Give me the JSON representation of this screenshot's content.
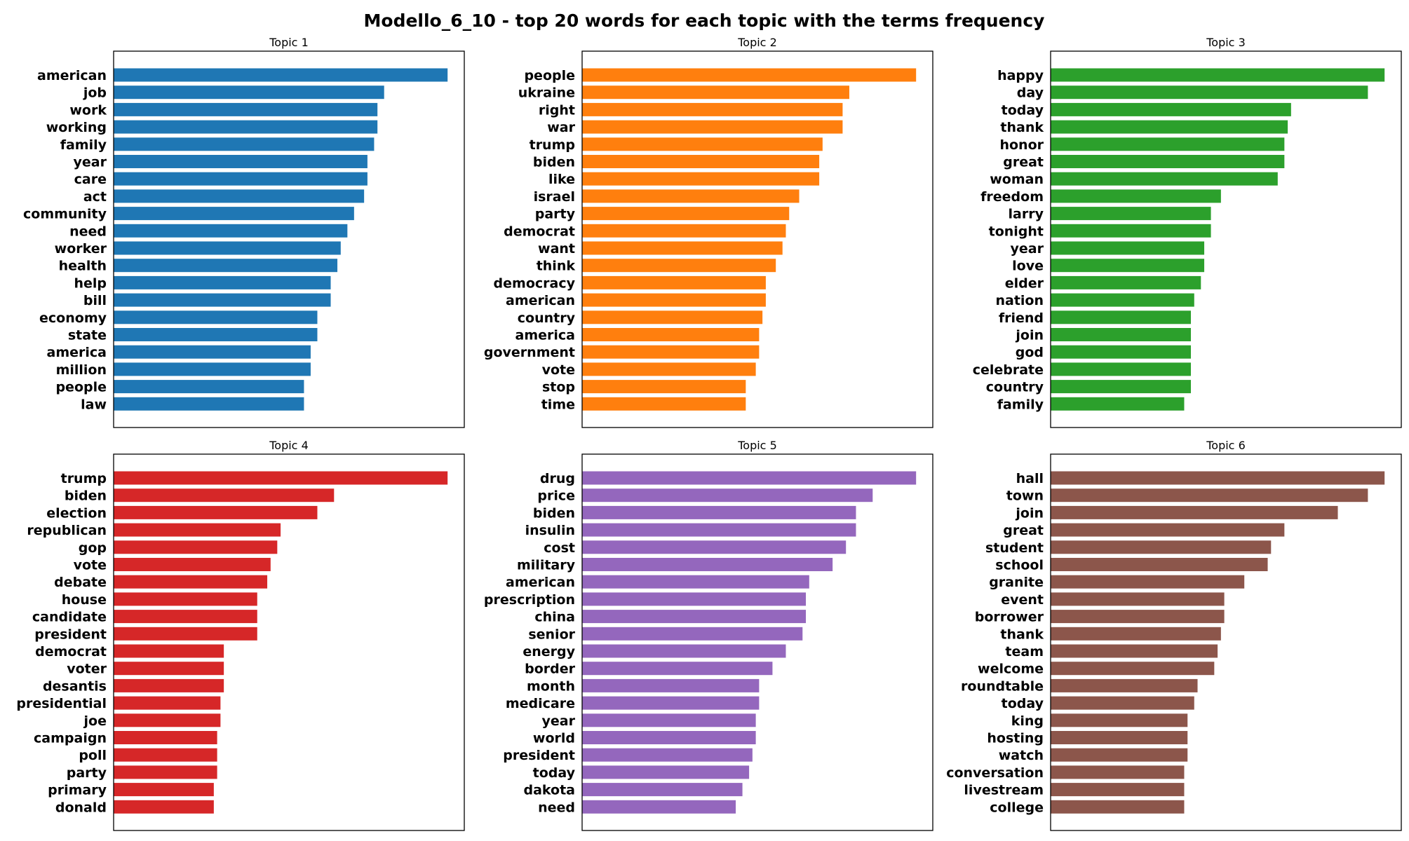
{
  "title": "Modello_6_10 - top 20 words for each topic with the terms frequency",
  "chart_data": [
    {
      "type": "bar",
      "orientation": "horizontal",
      "title": "Topic 1",
      "color": "#1f77b4",
      "xlim": [
        0,
        0.0105
      ],
      "categories": [
        "american",
        "job",
        "work",
        "working",
        "family",
        "year",
        "care",
        "act",
        "community",
        "need",
        "worker",
        "health",
        "help",
        "bill",
        "economy",
        "state",
        "america",
        "million",
        "people",
        "law"
      ],
      "values": [
        0.01,
        0.0081,
        0.0079,
        0.0079,
        0.0078,
        0.0076,
        0.0076,
        0.0075,
        0.0072,
        0.007,
        0.0068,
        0.0067,
        0.0065,
        0.0065,
        0.0061,
        0.0061,
        0.0059,
        0.0059,
        0.0057,
        0.0057
      ]
    },
    {
      "type": "bar",
      "orientation": "horizontal",
      "title": "Topic 2",
      "color": "#ff7f0e",
      "xlim": [
        0,
        0.0105
      ],
      "categories": [
        "people",
        "ukraine",
        "right",
        "war",
        "trump",
        "biden",
        "like",
        "israel",
        "party",
        "democrat",
        "want",
        "think",
        "democracy",
        "american",
        "country",
        "america",
        "government",
        "vote",
        "stop",
        "time"
      ],
      "values": [
        0.01,
        0.008,
        0.0078,
        0.0078,
        0.0072,
        0.0071,
        0.0071,
        0.0065,
        0.0062,
        0.0061,
        0.006,
        0.0058,
        0.0055,
        0.0055,
        0.0054,
        0.0053,
        0.0053,
        0.0052,
        0.0049,
        0.0049
      ]
    },
    {
      "type": "bar",
      "orientation": "horizontal",
      "title": "Topic 3",
      "color": "#2ca02c",
      "xlim": [
        0,
        0.0105
      ],
      "categories": [
        "happy",
        "day",
        "today",
        "thank",
        "honor",
        "great",
        "woman",
        "freedom",
        "larry",
        "tonight",
        "year",
        "love",
        "elder",
        "nation",
        "friend",
        "join",
        "god",
        "celebrate",
        "country",
        "family"
      ],
      "values": [
        0.01,
        0.0095,
        0.0072,
        0.0071,
        0.007,
        0.007,
        0.0068,
        0.0051,
        0.0048,
        0.0048,
        0.0046,
        0.0046,
        0.0045,
        0.0043,
        0.0042,
        0.0042,
        0.0042,
        0.0042,
        0.0042,
        0.004
      ]
    },
    {
      "type": "bar",
      "orientation": "horizontal",
      "title": "Topic 4",
      "color": "#d62728",
      "xlim": [
        0,
        0.0105
      ],
      "categories": [
        "trump",
        "biden",
        "election",
        "republican",
        "gop",
        "vote",
        "debate",
        "house",
        "candidate",
        "president",
        "democrat",
        "voter",
        "desantis",
        "presidential",
        "joe",
        "campaign",
        "poll",
        "party",
        "primary",
        "donald"
      ],
      "values": [
        0.01,
        0.0066,
        0.0061,
        0.005,
        0.0049,
        0.0047,
        0.0046,
        0.0043,
        0.0043,
        0.0043,
        0.0033,
        0.0033,
        0.0033,
        0.0032,
        0.0032,
        0.0031,
        0.0031,
        0.0031,
        0.003,
        0.003
      ]
    },
    {
      "type": "bar",
      "orientation": "horizontal",
      "title": "Topic 5",
      "color": "#9467bd",
      "xlim": [
        0,
        0.0105
      ],
      "categories": [
        "drug",
        "price",
        "biden",
        "insulin",
        "cost",
        "military",
        "american",
        "prescription",
        "china",
        "senior",
        "energy",
        "border",
        "month",
        "medicare",
        "year",
        "world",
        "president",
        "today",
        "dakota",
        "need"
      ],
      "values": [
        0.01,
        0.0087,
        0.0082,
        0.0082,
        0.0079,
        0.0075,
        0.0068,
        0.0067,
        0.0067,
        0.0066,
        0.0061,
        0.0057,
        0.0053,
        0.0053,
        0.0052,
        0.0052,
        0.0051,
        0.005,
        0.0048,
        0.0046
      ]
    },
    {
      "type": "bar",
      "orientation": "horizontal",
      "title": "Topic 6",
      "color": "#8c564b",
      "xlim": [
        0,
        0.0105
      ],
      "categories": [
        "hall",
        "town",
        "join",
        "great",
        "student",
        "school",
        "granite",
        "event",
        "borrower",
        "thank",
        "team",
        "welcome",
        "roundtable",
        "today",
        "king",
        "hosting",
        "watch",
        "conversation",
        "livestream",
        "college"
      ],
      "values": [
        0.01,
        0.0095,
        0.0086,
        0.007,
        0.0066,
        0.0065,
        0.0058,
        0.0052,
        0.0052,
        0.0051,
        0.005,
        0.0049,
        0.0044,
        0.0043,
        0.0041,
        0.0041,
        0.0041,
        0.004,
        0.004,
        0.004
      ]
    }
  ]
}
